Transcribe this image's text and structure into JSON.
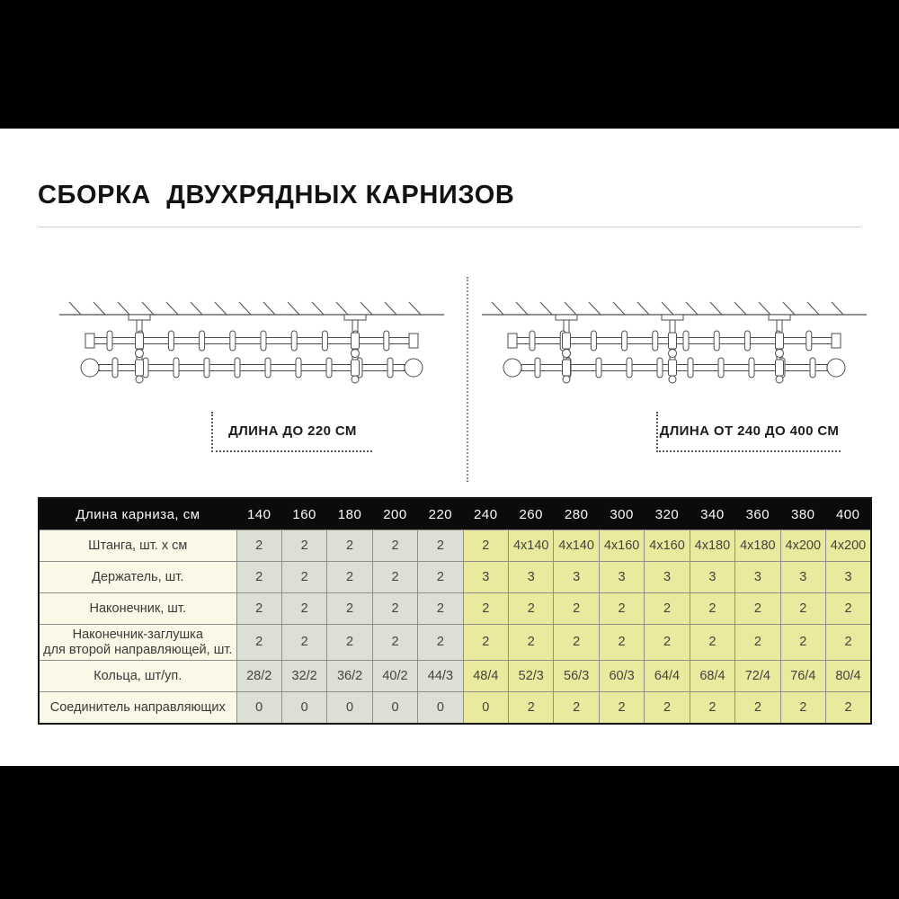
{
  "page": {
    "title": "СБОРКА  ДВУХРЯДНЫХ КАРНИЗОВ"
  },
  "diagrams": [
    {
      "caption": "ДЛИНА ДО 220 СМ",
      "brackets": 2
    },
    {
      "caption": "ДЛИНА ОТ 240 ДО 400 СМ",
      "brackets": 3
    }
  ],
  "table": {
    "header_label": "Длина карниза, см",
    "columns": [
      "140",
      "160",
      "180",
      "200",
      "220",
      "240",
      "260",
      "280",
      "300",
      "320",
      "340",
      "360",
      "380",
      "400"
    ],
    "gray_column_count": 5,
    "rows": [
      {
        "label": "Штанга, шт. х см",
        "values": [
          "2",
          "2",
          "2",
          "2",
          "2",
          "2",
          "4x140",
          "4x140",
          "4x160",
          "4x160",
          "4x180",
          "4x180",
          "4x200",
          "4x200"
        ]
      },
      {
        "label": "Держатель, шт.",
        "values": [
          "2",
          "2",
          "2",
          "2",
          "2",
          "3",
          "3",
          "3",
          "3",
          "3",
          "3",
          "3",
          "3",
          "3"
        ]
      },
      {
        "label": "Наконечник, шт.",
        "values": [
          "2",
          "2",
          "2",
          "2",
          "2",
          "2",
          "2",
          "2",
          "2",
          "2",
          "2",
          "2",
          "2",
          "2"
        ]
      },
      {
        "label": "Наконечник-заглушка\nдля второй направляющей, шт.",
        "values": [
          "2",
          "2",
          "2",
          "2",
          "2",
          "2",
          "2",
          "2",
          "2",
          "2",
          "2",
          "2",
          "2",
          "2"
        ]
      },
      {
        "label": "Кольца, шт/уп.",
        "values": [
          "28/2",
          "32/2",
          "36/2",
          "40/2",
          "44/3",
          "48/4",
          "52/3",
          "56/3",
          "60/3",
          "64/4",
          "68/4",
          "72/4",
          "76/4",
          "80/4"
        ]
      },
      {
        "label": "Соединитель направляющих",
        "values": [
          "0",
          "0",
          "0",
          "0",
          "0",
          "0",
          "2",
          "2",
          "2",
          "2",
          "2",
          "2",
          "2",
          "2"
        ]
      }
    ]
  },
  "colors": {
    "header_bg": "#0b0b0b",
    "label_col_bg": "#faf8e6",
    "short_cols_bg": "#dcdfd3",
    "long_cols_bg": "#e9ea9d"
  }
}
